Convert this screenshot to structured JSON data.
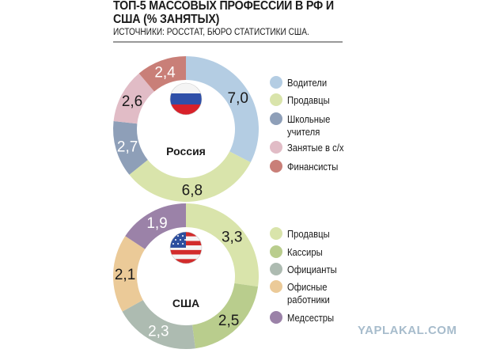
{
  "header": {
    "title": "ТОП-5 МАССОВЫХ ПРОФЕССИИ В РФ И США (% ЗАНЯТЫХ)",
    "subtitle": "ИСТОЧНИКИ: РОССТАТ, БЮРО СТАТИСТИКИ США."
  },
  "chart_data": [
    {
      "type": "pie",
      "variant": "donut",
      "title": "Россия",
      "flag": "russia-flag",
      "categories": [
        "Водители",
        "Продавцы",
        "Школьные\nучителя",
        "Занятые в с/х",
        "Финансисты"
      ],
      "values": [
        7.0,
        6.8,
        2.7,
        2.6,
        2.4
      ],
      "value_labels": [
        "7,0",
        "6,8",
        "2,7",
        "2,6",
        "2,4"
      ],
      "colors": [
        "#b4cde3",
        "#d9e4ab",
        "#8e9fb8",
        "#e1bcc6",
        "#c97f78"
      ],
      "label_colors": [
        "#1a1a1a",
        "#1a1a1a",
        "#ffffff",
        "#1a1a1a",
        "#ffffff"
      ],
      "legend": "right"
    },
    {
      "type": "pie",
      "variant": "donut",
      "title": "США",
      "flag": "usa-flag",
      "categories": [
        "Продавцы",
        "Кассиры",
        "Официанты",
        "Офисные\nработники",
        "Медсестры"
      ],
      "values": [
        3.3,
        2.5,
        2.3,
        2.1,
        1.9
      ],
      "value_labels": [
        "3,3",
        "2,5",
        "2,3",
        "2,1",
        "1,9"
      ],
      "colors": [
        "#d9e4ab",
        "#b9cd8d",
        "#adbbb1",
        "#ebca98",
        "#9b82a8"
      ],
      "label_colors": [
        "#1a1a1a",
        "#1a1a1a",
        "#ffffff",
        "#1a1a1a",
        "#ffffff"
      ],
      "legend": "right"
    }
  ],
  "watermark": "YAPLAKAL.COM"
}
